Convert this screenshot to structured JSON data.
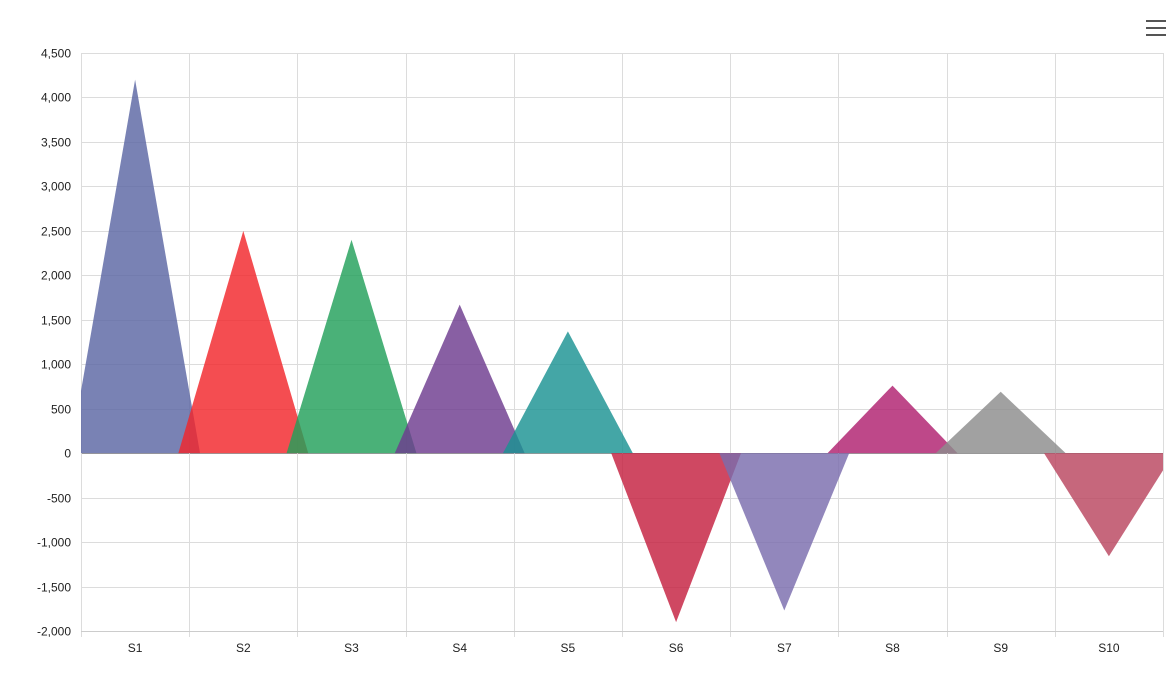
{
  "chart_data": {
    "type": "area",
    "title": "",
    "xlabel": "",
    "ylabel": "",
    "categories": [
      "S1",
      "S2",
      "S3",
      "S4",
      "S5",
      "S6",
      "S7",
      "S8",
      "S9",
      "S10"
    ],
    "values": [
      4200,
      2500,
      2400,
      1670,
      1370,
      -1900,
      -1770,
      760,
      690,
      -1160
    ],
    "ylim": [
      -2000,
      4500
    ],
    "yticks": [
      4500,
      4000,
      3500,
      3000,
      2500,
      2000,
      1500,
      1000,
      500,
      0,
      -500,
      -1000,
      -1500,
      -2000
    ],
    "ytick_labels": [
      "4,500",
      "4,000",
      "3,500",
      "3,000",
      "2,500",
      "2,000",
      "1,500",
      "1,000",
      "500",
      "0",
      "-500",
      "-1,000",
      "-1,500",
      "-2,000"
    ],
    "colors": [
      "#5c67a3",
      "#f2262b",
      "#22a05a",
      "#6e3c8f",
      "#1b9393",
      "#c4203f",
      "#7a6cad",
      "#b0206f",
      "#8c8c8c",
      "#b9465f"
    ],
    "grid": true,
    "legend": "none"
  },
  "toolbar": {
    "menu_icon": "hamburger-menu-icon"
  }
}
